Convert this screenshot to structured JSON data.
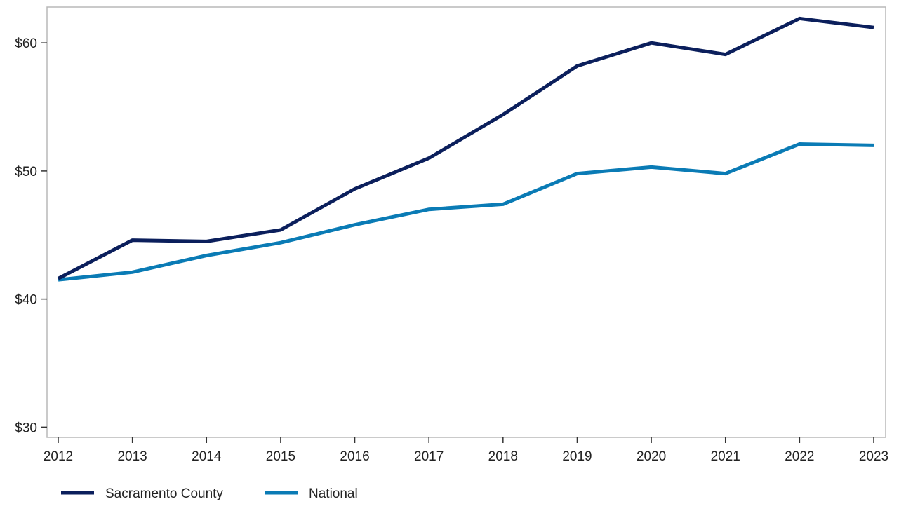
{
  "chart_data": {
    "type": "line",
    "title": "",
    "xlabel": "",
    "ylabel": "",
    "x": [
      "2012",
      "2013",
      "2014",
      "2015",
      "2016",
      "2017",
      "2018",
      "2019",
      "2020",
      "2021",
      "2022",
      "2023"
    ],
    "y_ticks": [
      30,
      40,
      50,
      60
    ],
    "y_tick_labels": [
      "$30",
      "$40",
      "$50",
      "$60"
    ],
    "ylim": [
      29.2,
      62.8
    ],
    "grid": false,
    "legend_position": "bottom-left",
    "series": [
      {
        "name": "Sacramento County",
        "color": "#0b1f5c",
        "values": [
          41.6,
          44.6,
          44.5,
          45.4,
          48.6,
          51.0,
          54.4,
          58.2,
          60.0,
          59.1,
          61.9,
          61.2
        ]
      },
      {
        "name": "National",
        "color": "#0a7bb5",
        "values": [
          41.5,
          42.1,
          43.4,
          44.4,
          45.8,
          47.0,
          47.4,
          49.8,
          50.3,
          49.8,
          52.1,
          52.0
        ]
      }
    ]
  }
}
